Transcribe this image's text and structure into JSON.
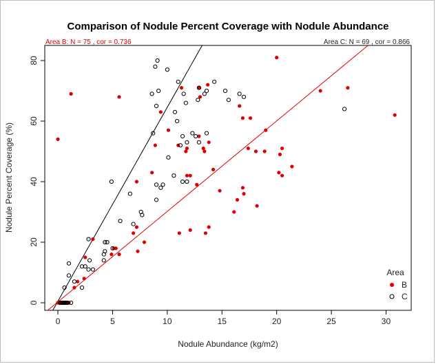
{
  "chart_data": {
    "type": "scatter",
    "title": "Comparison of Nodule Percent Coverage with Nodule Abundance",
    "subtitle_left": "Area B: N = 75 , cor = 0.736",
    "subtitle_right": "Area C: N = 69 , cor = 0.866",
    "xlabel": "Nodule Abundance (kg/m2)",
    "ylabel": "Nodule Percent Coverage (%)",
    "xlim": [
      -1.2,
      32.3
    ],
    "ylim": [
      -2.5,
      85
    ],
    "xticks": [
      0,
      5,
      10,
      15,
      20,
      25,
      30
    ],
    "yticks": [
      0,
      20,
      40,
      60,
      80
    ],
    "legend": {
      "title": "Area",
      "position": "bottom-right",
      "labels": [
        "B",
        "C"
      ]
    },
    "colors": {
      "B": "#e00000",
      "C": "#000000"
    },
    "fit_lines": [
      {
        "name": "B",
        "x": [
          -1.2,
          32.3
        ],
        "y": [
          -3.3,
          96.8
        ]
      },
      {
        "name": "C",
        "x": [
          -1.2,
          32.3
        ],
        "y": [
          -7.2,
          207.5
        ]
      }
    ],
    "series": [
      {
        "name": "B",
        "marker": "filled",
        "points": [
          [
            0.0,
            54.0
          ],
          [
            1.2,
            69.0
          ],
          [
            5.6,
            68.0
          ],
          [
            20.0,
            81.0
          ],
          [
            24.0,
            70.0
          ],
          [
            26.5,
            71.0
          ],
          [
            30.8,
            62.0
          ],
          [
            11.3,
            71.0
          ],
          [
            12.9,
            71.0
          ],
          [
            13.7,
            72.0
          ],
          [
            13.0,
            68.0
          ],
          [
            16.6,
            65.0
          ],
          [
            16.9,
            61.0
          ],
          [
            17.6,
            61.0
          ],
          [
            9.4,
            63.0
          ],
          [
            8.9,
            52.0
          ],
          [
            10.1,
            57.0
          ],
          [
            11.0,
            52.0
          ],
          [
            11.8,
            51.0
          ],
          [
            11.7,
            50.0
          ],
          [
            13.3,
            51.0
          ],
          [
            13.4,
            50.0
          ],
          [
            13.8,
            53.0
          ],
          [
            12.9,
            55.0
          ],
          [
            17.4,
            51.0
          ],
          [
            18.1,
            50.0
          ],
          [
            18.9,
            50.0
          ],
          [
            19.0,
            57.0
          ],
          [
            20.5,
            51.0
          ],
          [
            20.3,
            49.0
          ],
          [
            8.6,
            43.0
          ],
          [
            11.8,
            42.0
          ],
          [
            12.1,
            42.0
          ],
          [
            12.7,
            39.0
          ],
          [
            14.2,
            44.0
          ],
          [
            20.2,
            43.0
          ],
          [
            20.5,
            42.0
          ],
          [
            21.4,
            45.0
          ],
          [
            14.8,
            37.0
          ],
          [
            16.9,
            38.0
          ],
          [
            17.0,
            36.0
          ],
          [
            16.4,
            34.0
          ],
          [
            16.1,
            30.0
          ],
          [
            18.2,
            32.0
          ],
          [
            7.2,
            40.0
          ],
          [
            7.2,
            25.0
          ],
          [
            6.9,
            23.0
          ],
          [
            11.1,
            23.0
          ],
          [
            12.1,
            24.0
          ],
          [
            13.5,
            23.0
          ],
          [
            13.8,
            25.0
          ],
          [
            7.3,
            17.0
          ],
          [
            7.9,
            20.0
          ],
          [
            3.2,
            21.0
          ],
          [
            2.5,
            15.0
          ],
          [
            5.1,
            18.0
          ],
          [
            5.3,
            18.0
          ],
          [
            4.9,
            16.0
          ],
          [
            5.6,
            16.0
          ],
          [
            0.0,
            0.0
          ],
          [
            0.1,
            0.0
          ],
          [
            0.2,
            0.0
          ],
          [
            0.3,
            0.0
          ],
          [
            0.4,
            0.0
          ],
          [
            0.5,
            0.0
          ],
          [
            0.6,
            0.0
          ],
          [
            0.7,
            0.0
          ],
          [
            0.8,
            0.0
          ],
          [
            0.9,
            0.0
          ],
          [
            1.5,
            5.0
          ],
          [
            2.4,
            8.0
          ],
          [
            1.8,
            7.0
          ],
          [
            1.0,
            0.0
          ],
          [
            0.2,
            0.0
          ],
          [
            0.6,
            0.0
          ]
        ]
      },
      {
        "name": "C",
        "marker": "open",
        "points": [
          [
            9.1,
            80.0
          ],
          [
            8.9,
            78.0
          ],
          [
            10.0,
            77.0
          ],
          [
            11.0,
            73.0
          ],
          [
            14.3,
            73.0
          ],
          [
            12.9,
            71.0
          ],
          [
            13.6,
            70.0
          ],
          [
            15.3,
            70.0
          ],
          [
            9.2,
            70.0
          ],
          [
            11.5,
            69.0
          ],
          [
            8.6,
            69.0
          ],
          [
            13.4,
            69.0
          ],
          [
            16.6,
            69.0
          ],
          [
            17.0,
            68.0
          ],
          [
            12.8,
            67.0
          ],
          [
            15.6,
            67.0
          ],
          [
            11.7,
            66.0
          ],
          [
            9.0,
            65.0
          ],
          [
            10.7,
            63.0
          ],
          [
            10.9,
            60.0
          ],
          [
            26.2,
            64.0
          ],
          [
            8.7,
            56.0
          ],
          [
            12.3,
            56.0
          ],
          [
            13.6,
            56.0
          ],
          [
            11.4,
            55.0
          ],
          [
            11.2,
            52.0
          ],
          [
            11.8,
            53.0
          ],
          [
            12.6,
            55.0
          ],
          [
            12.9,
            53.0
          ],
          [
            10.1,
            48.0
          ],
          [
            4.9,
            40.0
          ],
          [
            10.6,
            42.0
          ],
          [
            11.4,
            40.0
          ],
          [
            11.8,
            40.0
          ],
          [
            9.0,
            39.0
          ],
          [
            9.6,
            39.0
          ],
          [
            9.4,
            38.0
          ],
          [
            6.6,
            36.0
          ],
          [
            9.0,
            34.0
          ],
          [
            7.6,
            30.0
          ],
          [
            7.7,
            29.0
          ],
          [
            5.7,
            27.0
          ],
          [
            6.9,
            26.0
          ],
          [
            2.8,
            21.0
          ],
          [
            4.3,
            20.0
          ],
          [
            4.5,
            20.0
          ],
          [
            4.3,
            17.0
          ],
          [
            5.0,
            18.0
          ],
          [
            4.2,
            16.0
          ],
          [
            2.5,
            12.0
          ],
          [
            2.2,
            12.0
          ],
          [
            3.2,
            11.0
          ],
          [
            2.9,
            14.0
          ],
          [
            4.2,
            14.0
          ],
          [
            2.8,
            11.0
          ],
          [
            1.0,
            13.0
          ],
          [
            1.0,
            9.0
          ],
          [
            1.5,
            7.0
          ],
          [
            0.6,
            5.0
          ],
          [
            2.2,
            5.0
          ],
          [
            0.2,
            0.0
          ],
          [
            0.4,
            0.0
          ],
          [
            0.5,
            0.0
          ],
          [
            0.6,
            0.0
          ],
          [
            0.7,
            0.0
          ],
          [
            0.8,
            0.0
          ],
          [
            0.9,
            0.0
          ],
          [
            1.2,
            0.0
          ],
          [
            0.3,
            0.0
          ]
        ]
      }
    ]
  }
}
